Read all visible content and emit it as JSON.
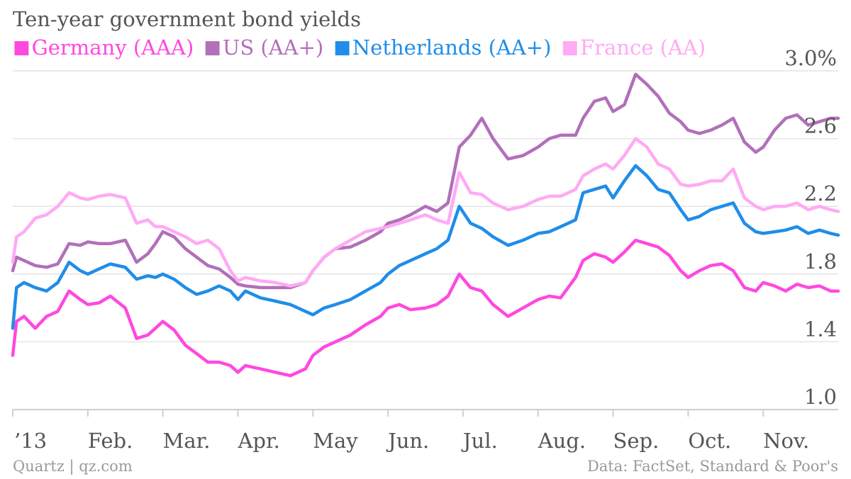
{
  "title": "Ten-year government bond yields",
  "footer": {
    "source_left": "Quartz | qz.com",
    "source_right": "Data: FactSet, Standard & Poor's"
  },
  "chart_data": {
    "type": "line",
    "title": "Ten-year government bond yields",
    "xlabel": "",
    "ylabel": "",
    "x_tick_labels": [
      "’13",
      "Feb.",
      "Mar.",
      "Apr.",
      "May",
      "Jun.",
      "Jul.",
      "Aug.",
      "Sep.",
      "Oct.",
      "Nov."
    ],
    "x_tick_months": [
      0,
      1,
      2,
      3,
      4,
      5,
      6,
      7,
      8,
      9,
      10
    ],
    "xlim": [
      0,
      11
    ],
    "ylim": [
      1.0,
      3.0
    ],
    "y_ticks": [
      1.0,
      1.4,
      1.8,
      2.2,
      2.6,
      3.0
    ],
    "y_tick_labels": [
      "1.0",
      "1.4",
      "1.8",
      "2.2",
      "2.6",
      "3.0%"
    ],
    "grid": true,
    "legend_position": "top-left",
    "series": [
      {
        "name": "Germany (AAA)",
        "color": "#ff48e0",
        "x": [
          0.0,
          0.05,
          0.15,
          0.3,
          0.45,
          0.6,
          0.75,
          0.9,
          1.0,
          1.15,
          1.3,
          1.5,
          1.65,
          1.8,
          1.9,
          2.0,
          2.15,
          2.3,
          2.45,
          2.6,
          2.75,
          2.9,
          3.0,
          3.1,
          3.3,
          3.5,
          3.7,
          3.9,
          4.0,
          4.15,
          4.3,
          4.5,
          4.7,
          4.9,
          5.0,
          5.15,
          5.3,
          5.5,
          5.65,
          5.8,
          5.95,
          6.1,
          6.25,
          6.4,
          6.6,
          6.8,
          7.0,
          7.15,
          7.3,
          7.5,
          7.6,
          7.75,
          7.9,
          8.0,
          8.15,
          8.3,
          8.45,
          8.6,
          8.75,
          8.9,
          9.0,
          9.15,
          9.3,
          9.45,
          9.6,
          9.75,
          9.9,
          10.0,
          10.15,
          10.3,
          10.45,
          10.6,
          10.75,
          10.9,
          11.0
        ],
        "y": [
          1.32,
          1.52,
          1.55,
          1.48,
          1.55,
          1.58,
          1.7,
          1.65,
          1.62,
          1.63,
          1.67,
          1.6,
          1.42,
          1.44,
          1.48,
          1.52,
          1.47,
          1.38,
          1.33,
          1.28,
          1.28,
          1.26,
          1.22,
          1.26,
          1.24,
          1.22,
          1.2,
          1.24,
          1.32,
          1.37,
          1.4,
          1.44,
          1.5,
          1.55,
          1.6,
          1.62,
          1.59,
          1.6,
          1.62,
          1.67,
          1.8,
          1.72,
          1.7,
          1.62,
          1.55,
          1.6,
          1.65,
          1.67,
          1.66,
          1.78,
          1.88,
          1.92,
          1.9,
          1.87,
          1.93,
          2.0,
          1.98,
          1.96,
          1.91,
          1.82,
          1.78,
          1.82,
          1.85,
          1.86,
          1.82,
          1.72,
          1.7,
          1.75,
          1.73,
          1.7,
          1.74,
          1.72,
          1.73,
          1.7,
          1.7
        ]
      },
      {
        "name": "US (AA+)",
        "color": "#b170b9",
        "x": [
          0.0,
          0.05,
          0.15,
          0.3,
          0.45,
          0.6,
          0.75,
          0.9,
          1.0,
          1.15,
          1.3,
          1.5,
          1.65,
          1.8,
          1.9,
          2.0,
          2.15,
          2.3,
          2.45,
          2.6,
          2.75,
          2.9,
          3.0,
          3.1,
          3.3,
          3.5,
          3.7,
          3.9,
          4.0,
          4.15,
          4.3,
          4.5,
          4.7,
          4.9,
          5.0,
          5.15,
          5.3,
          5.5,
          5.65,
          5.8,
          5.95,
          6.1,
          6.25,
          6.4,
          6.6,
          6.8,
          7.0,
          7.15,
          7.3,
          7.5,
          7.6,
          7.75,
          7.9,
          8.0,
          8.15,
          8.3,
          8.45,
          8.6,
          8.75,
          8.9,
          9.0,
          9.15,
          9.3,
          9.45,
          9.6,
          9.75,
          9.9,
          10.0,
          10.15,
          10.3,
          10.45,
          10.6,
          10.75,
          10.9,
          11.0
        ],
        "y": [
          1.82,
          1.9,
          1.88,
          1.85,
          1.84,
          1.86,
          1.98,
          1.97,
          1.99,
          1.98,
          1.98,
          2.0,
          1.87,
          1.92,
          1.98,
          2.05,
          2.02,
          1.95,
          1.9,
          1.85,
          1.83,
          1.78,
          1.74,
          1.73,
          1.72,
          1.72,
          1.72,
          1.75,
          1.82,
          1.9,
          1.95,
          1.96,
          2.0,
          2.05,
          2.1,
          2.12,
          2.15,
          2.2,
          2.17,
          2.22,
          2.55,
          2.62,
          2.72,
          2.6,
          2.48,
          2.5,
          2.55,
          2.6,
          2.62,
          2.62,
          2.72,
          2.82,
          2.84,
          2.76,
          2.8,
          2.98,
          2.92,
          2.85,
          2.75,
          2.7,
          2.65,
          2.63,
          2.65,
          2.68,
          2.72,
          2.58,
          2.52,
          2.55,
          2.65,
          2.72,
          2.74,
          2.68,
          2.7,
          2.72,
          2.72
        ]
      },
      {
        "name": "Netherlands (AA+)",
        "color": "#1f8de9",
        "x": [
          0.0,
          0.05,
          0.15,
          0.3,
          0.45,
          0.6,
          0.75,
          0.9,
          1.0,
          1.15,
          1.3,
          1.5,
          1.65,
          1.8,
          1.9,
          2.0,
          2.15,
          2.3,
          2.45,
          2.6,
          2.75,
          2.9,
          3.0,
          3.1,
          3.3,
          3.5,
          3.7,
          3.9,
          4.0,
          4.15,
          4.3,
          4.5,
          4.7,
          4.9,
          5.0,
          5.15,
          5.3,
          5.5,
          5.65,
          5.8,
          5.95,
          6.1,
          6.25,
          6.4,
          6.6,
          6.8,
          7.0,
          7.15,
          7.3,
          7.5,
          7.6,
          7.75,
          7.9,
          8.0,
          8.15,
          8.3,
          8.45,
          8.6,
          8.75,
          8.9,
          9.0,
          9.15,
          9.3,
          9.45,
          9.6,
          9.75,
          9.9,
          10.0,
          10.15,
          10.3,
          10.45,
          10.6,
          10.75,
          10.9,
          11.0
        ],
        "y": [
          1.48,
          1.72,
          1.75,
          1.72,
          1.7,
          1.75,
          1.87,
          1.82,
          1.8,
          1.83,
          1.86,
          1.84,
          1.77,
          1.79,
          1.78,
          1.8,
          1.77,
          1.72,
          1.68,
          1.7,
          1.73,
          1.7,
          1.65,
          1.7,
          1.66,
          1.64,
          1.62,
          1.58,
          1.56,
          1.6,
          1.62,
          1.65,
          1.7,
          1.75,
          1.8,
          1.85,
          1.88,
          1.92,
          1.95,
          2.0,
          2.2,
          2.1,
          2.07,
          2.02,
          1.97,
          2.0,
          2.04,
          2.05,
          2.08,
          2.12,
          2.28,
          2.3,
          2.32,
          2.25,
          2.35,
          2.44,
          2.38,
          2.3,
          2.28,
          2.18,
          2.12,
          2.14,
          2.18,
          2.2,
          2.22,
          2.1,
          2.05,
          2.04,
          2.05,
          2.06,
          2.08,
          2.04,
          2.06,
          2.04,
          2.03
        ]
      },
      {
        "name": "France (AA)",
        "color": "#ffaaf4",
        "x": [
          0.0,
          0.05,
          0.15,
          0.3,
          0.45,
          0.6,
          0.75,
          0.9,
          1.0,
          1.15,
          1.3,
          1.5,
          1.65,
          1.8,
          1.9,
          2.0,
          2.15,
          2.3,
          2.45,
          2.6,
          2.75,
          2.9,
          3.0,
          3.1,
          3.3,
          3.5,
          3.7,
          3.9,
          4.0,
          4.15,
          4.3,
          4.5,
          4.7,
          4.9,
          5.0,
          5.15,
          5.3,
          5.5,
          5.65,
          5.8,
          5.95,
          6.1,
          6.25,
          6.4,
          6.6,
          6.8,
          7.0,
          7.15,
          7.3,
          7.5,
          7.6,
          7.75,
          7.9,
          8.0,
          8.15,
          8.3,
          8.45,
          8.6,
          8.75,
          8.9,
          9.0,
          9.15,
          9.3,
          9.45,
          9.6,
          9.75,
          9.9,
          10.0,
          10.15,
          10.3,
          10.45,
          10.6,
          10.75,
          10.9,
          11.0
        ],
        "y": [
          1.87,
          2.02,
          2.05,
          2.13,
          2.15,
          2.2,
          2.28,
          2.25,
          2.24,
          2.26,
          2.27,
          2.25,
          2.1,
          2.12,
          2.08,
          2.08,
          2.05,
          2.02,
          1.98,
          2.0,
          1.95,
          1.82,
          1.76,
          1.78,
          1.76,
          1.75,
          1.73,
          1.75,
          1.82,
          1.9,
          1.95,
          2.0,
          2.05,
          2.07,
          2.08,
          2.1,
          2.12,
          2.15,
          2.12,
          2.1,
          2.4,
          2.28,
          2.27,
          2.22,
          2.18,
          2.2,
          2.24,
          2.26,
          2.26,
          2.3,
          2.38,
          2.42,
          2.45,
          2.42,
          2.5,
          2.6,
          2.55,
          2.45,
          2.42,
          2.33,
          2.32,
          2.33,
          2.35,
          2.35,
          2.42,
          2.25,
          2.2,
          2.18,
          2.2,
          2.2,
          2.22,
          2.18,
          2.2,
          2.18,
          2.17
        ]
      }
    ]
  }
}
